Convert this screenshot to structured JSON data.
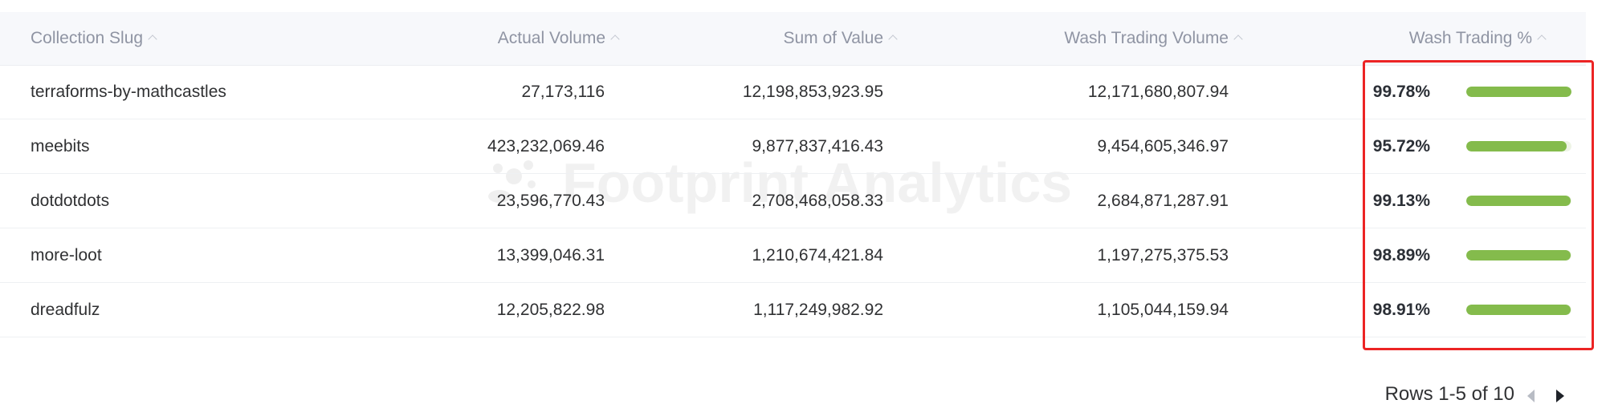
{
  "watermark": "Footprint Analytics",
  "table": {
    "columns": [
      "Collection Slug",
      "Actual Volume",
      "Sum of Value",
      "Wash Trading Volume",
      "Wash Trading %"
    ],
    "rows": [
      {
        "slug": "terraforms-by-mathcastles",
        "actual": "27,173,116",
        "sum": "12,198,853,923.95",
        "wash": "12,171,680,807.94",
        "pct": "99.78%",
        "pct_value": 99.78
      },
      {
        "slug": "meebits",
        "actual": "423,232,069.46",
        "sum": "9,877,837,416.43",
        "wash": "9,454,605,346.97",
        "pct": "95.72%",
        "pct_value": 95.72
      },
      {
        "slug": "dotdotdots",
        "actual": "23,596,770.43",
        "sum": "2,708,468,058.33",
        "wash": "2,684,871,287.91",
        "pct": "99.13%",
        "pct_value": 99.13
      },
      {
        "slug": "more-loot",
        "actual": "13,399,046.31",
        "sum": "1,210,674,421.84",
        "wash": "1,197,275,375.53",
        "pct": "98.89%",
        "pct_value": 98.89
      },
      {
        "slug": "dreadfulz",
        "actual": "12,205,822.98",
        "sum": "1,117,249,982.92",
        "wash": "1,105,044,159.94",
        "pct": "98.91%",
        "pct_value": 98.91
      }
    ]
  },
  "colors": {
    "bar_fill": "#84bb4c",
    "highlight_box": "#ec2424"
  },
  "pagination": {
    "label": "Rows 1-5 of 10"
  }
}
